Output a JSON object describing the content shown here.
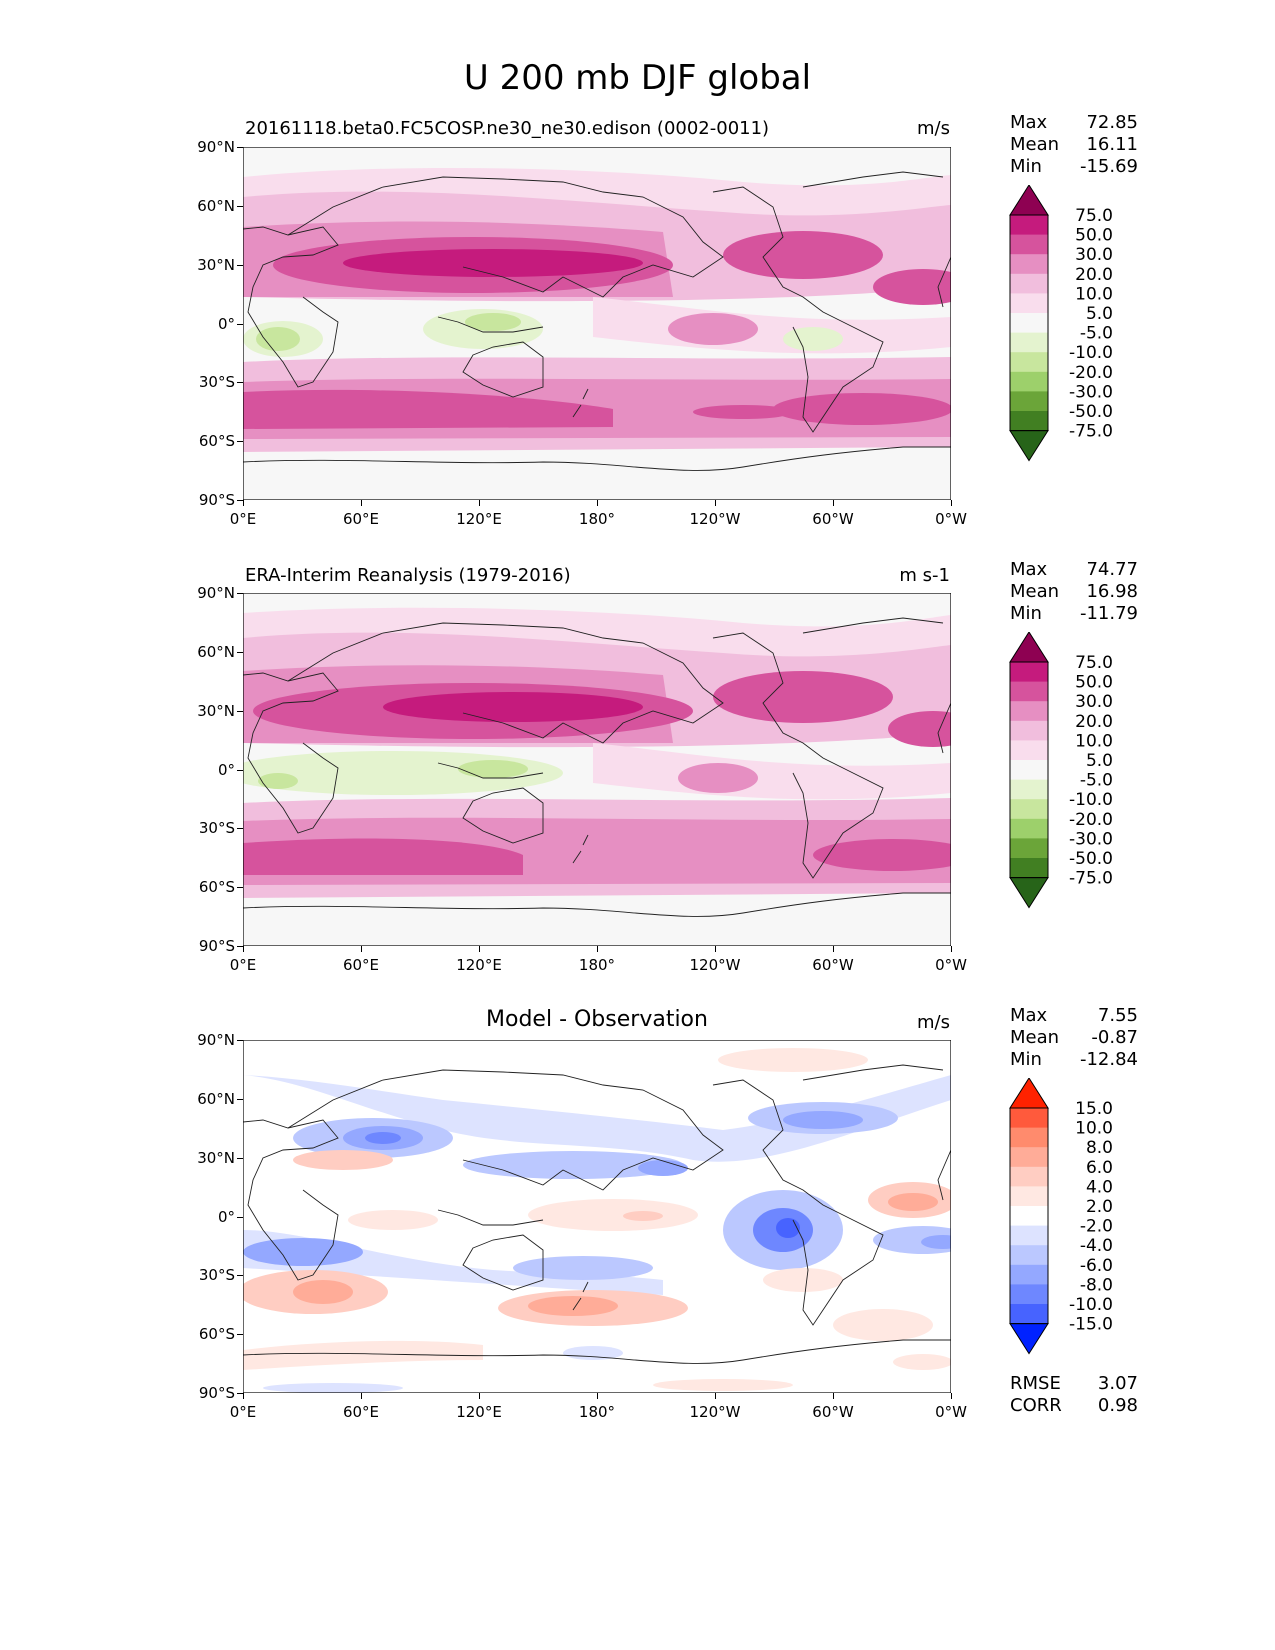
{
  "figure": {
    "title": "U 200 mb DJF global"
  },
  "panels": [
    {
      "id": "model",
      "title": "20161118.beta0.FC5COSP.ne30_ne30.edison (0002-0011)",
      "units": "m/s",
      "stats": [
        {
          "label": "Max",
          "value": "72.85"
        },
        {
          "label": "Mean",
          "value": "16.11"
        },
        {
          "label": "Min",
          "value": "-15.69"
        }
      ]
    },
    {
      "id": "obs",
      "title": "ERA-Interim Reanalysis (1979-2016)",
      "units": "m s-1",
      "stats": [
        {
          "label": "Max",
          "value": "74.77"
        },
        {
          "label": "Mean",
          "value": "16.98"
        },
        {
          "label": "Min",
          "value": "-11.79"
        }
      ]
    },
    {
      "id": "diff",
      "title": "Model - Observation",
      "units": "m/s",
      "stats": [
        {
          "label": "Max",
          "value": "7.55"
        },
        {
          "label": "Mean",
          "value": "-0.87"
        },
        {
          "label": "Min",
          "value": "-12.84"
        }
      ],
      "extra_stats": [
        {
          "label": "RMSE",
          "value": "3.07"
        },
        {
          "label": "CORR",
          "value": "0.98"
        }
      ]
    }
  ],
  "axes": {
    "lat_ticks": [
      "90°N",
      "60°N",
      "30°N",
      "0°",
      "30°S",
      "60°S",
      "90°S"
    ],
    "lon_ticks": [
      "0°E",
      "60°E",
      "120°E",
      "180°",
      "120°W",
      "60°W",
      "0°W"
    ]
  },
  "colorbars": {
    "full": {
      "levels": [
        "75.0",
        "50.0",
        "30.0",
        "20.0",
        "10.0",
        "5.0",
        "-5.0",
        "-10.0",
        "-20.0",
        "-30.0",
        "-50.0",
        "-75.0"
      ],
      "colors": [
        "#8e0152",
        "#c51b7d",
        "#d6539d",
        "#e68fc2",
        "#f1bedd",
        "#f9dded",
        "#f7f7f7",
        "#e4f3cf",
        "#c8e69e",
        "#9dd06b",
        "#6ba539",
        "#417f22",
        "#276419"
      ]
    },
    "diff": {
      "levels": [
        "15.0",
        "10.0",
        "8.0",
        "6.0",
        "4.0",
        "2.0",
        "-2.0",
        "-4.0",
        "-6.0",
        "-8.0",
        "-10.0",
        "-15.0"
      ],
      "colors": [
        "#ff2200",
        "#ff5a3c",
        "#ff8b6d",
        "#ffac98",
        "#ffcdc2",
        "#ffe8e2",
        "#ffffff",
        "#dde3ff",
        "#bbc8ff",
        "#94a8ff",
        "#6e87ff",
        "#4763ff",
        "#0022ff"
      ]
    }
  },
  "chart_data": {
    "type": "heatmap",
    "variable": "U 200 mb",
    "season": "DJF",
    "xlim": [
      0,
      360
    ],
    "ylim": [
      -90,
      90
    ],
    "summary": [
      {
        "panel": "model",
        "max": 72.85,
        "mean": 16.11,
        "min": -15.69
      },
      {
        "panel": "obs",
        "max": 74.77,
        "mean": 16.98,
        "min": -11.79
      },
      {
        "panel": "diff",
        "max": 7.55,
        "mean": -0.87,
        "min": -12.84,
        "rmse": 3.07,
        "corr": 0.98
      }
    ]
  }
}
